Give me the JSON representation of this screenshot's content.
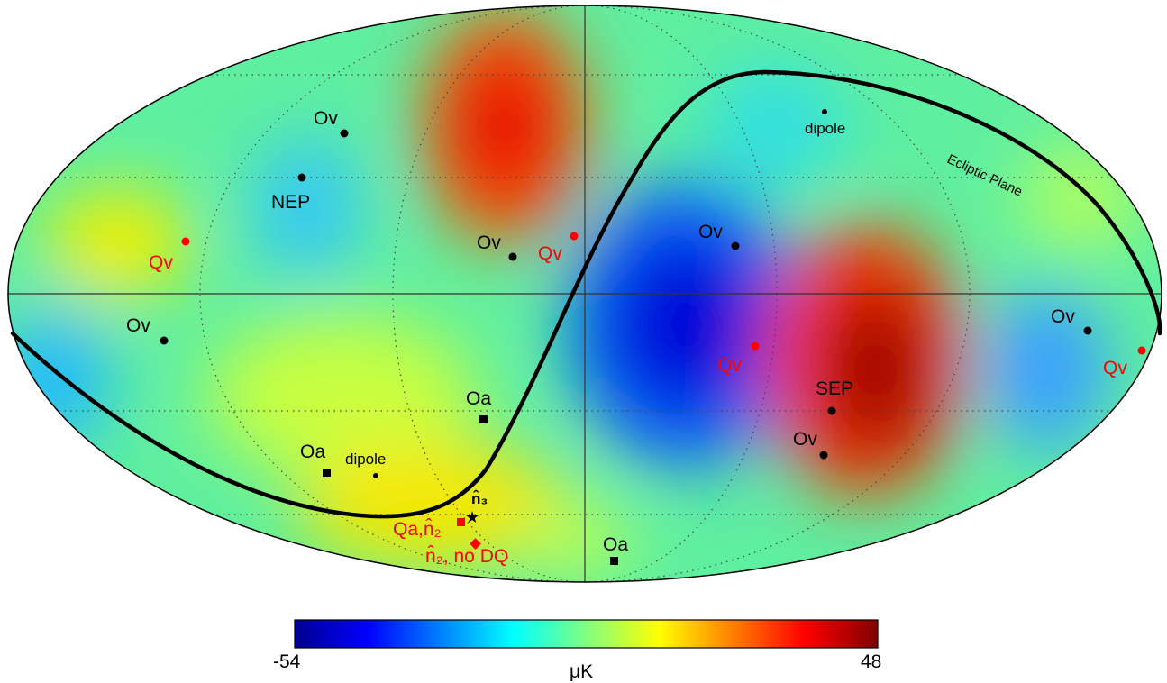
{
  "map": {
    "projection": "mollweide",
    "colorscale": [
      "#00008f",
      "#0000ff",
      "#0080ff",
      "#00ffff",
      "#80ff80",
      "#ffff00",
      "#ff8000",
      "#ff0000",
      "#800000"
    ]
  },
  "labels": {
    "ov_1": "Ov",
    "ov_2": "Ov",
    "ov_3": "Ov",
    "ov_4": "Ov",
    "ov_5": "Ov",
    "ov_6": "Ov",
    "qv_1": "Qv",
    "qv_2": "Qv",
    "qv_3": "Qv",
    "qv_4": "Qv",
    "nep": "NEP",
    "sep": "SEP",
    "dipole_top": "dipole",
    "dipole_bottom": "dipole",
    "oa_1": "Oa",
    "oa_2": "Oa",
    "oa_3": "Oa",
    "n3": "n̂₃",
    "qa_n2": "Qa,n̂₂",
    "n2_no_dq": "n̂₂, no DQ",
    "ecliptic": "Ecliptic Plane"
  },
  "colorbar": {
    "min_label": "-54",
    "max_label": "48",
    "unit_label": "μK",
    "min": -54,
    "max": 48
  }
}
